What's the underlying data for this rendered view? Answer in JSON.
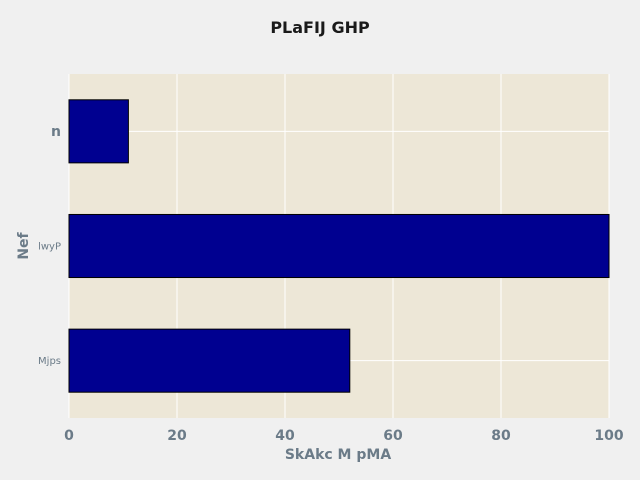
{
  "chart_data": {
    "type": "bar",
    "orientation": "horizontal",
    "title": "PLaFIJ   GHP",
    "xlabel": "SkAkc  M pMA",
    "ylabel": "Nef",
    "categories": [
      "n",
      "lwyP",
      "Mjps"
    ],
    "values": [
      11,
      100,
      52
    ],
    "xlim": [
      0,
      100
    ],
    "xticks": [
      "0",
      "20",
      "40",
      "60",
      "80",
      "100"
    ],
    "grid": true,
    "colors": {
      "bar": "#000090",
      "bar_edge": "#000000",
      "plot_background": "#ede7d7",
      "figure_background": "#f0f0f0",
      "grid": "#ffffff",
      "axis_text": "#6b7b88"
    }
  }
}
